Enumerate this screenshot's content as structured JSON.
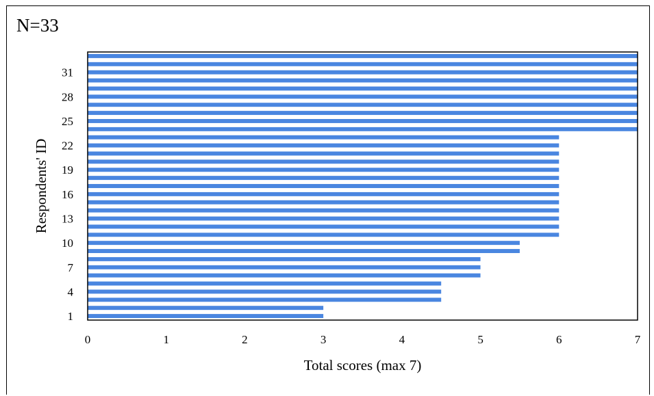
{
  "chart_data": {
    "type": "bar",
    "orientation": "horizontal",
    "title": "N=33",
    "xlabel": "Total scores (max 7)",
    "ylabel": "Respondents' ID",
    "xlim": [
      0,
      7
    ],
    "x_ticks": [
      "0",
      "1",
      "2",
      "3",
      "4",
      "5",
      "6",
      "7"
    ],
    "y_ticks": [
      "1",
      "4",
      "7",
      "10",
      "13",
      "16",
      "19",
      "22",
      "25",
      "28",
      "31"
    ],
    "categories": [
      1,
      2,
      3,
      4,
      5,
      6,
      7,
      8,
      9,
      10,
      11,
      12,
      13,
      14,
      15,
      16,
      17,
      18,
      19,
      20,
      21,
      22,
      23,
      24,
      25,
      26,
      27,
      28,
      29,
      30,
      31,
      32,
      33
    ],
    "values": [
      3,
      3,
      4.5,
      4.5,
      4.5,
      5,
      5,
      5,
      5.5,
      5.5,
      6,
      6,
      6,
      6,
      6,
      6,
      6,
      6,
      6,
      6,
      6,
      6,
      6,
      7,
      7,
      7,
      7,
      7,
      7,
      7,
      7,
      7,
      7
    ],
    "bar_color": "#4a86e0",
    "grid": false,
    "legend": "none"
  }
}
